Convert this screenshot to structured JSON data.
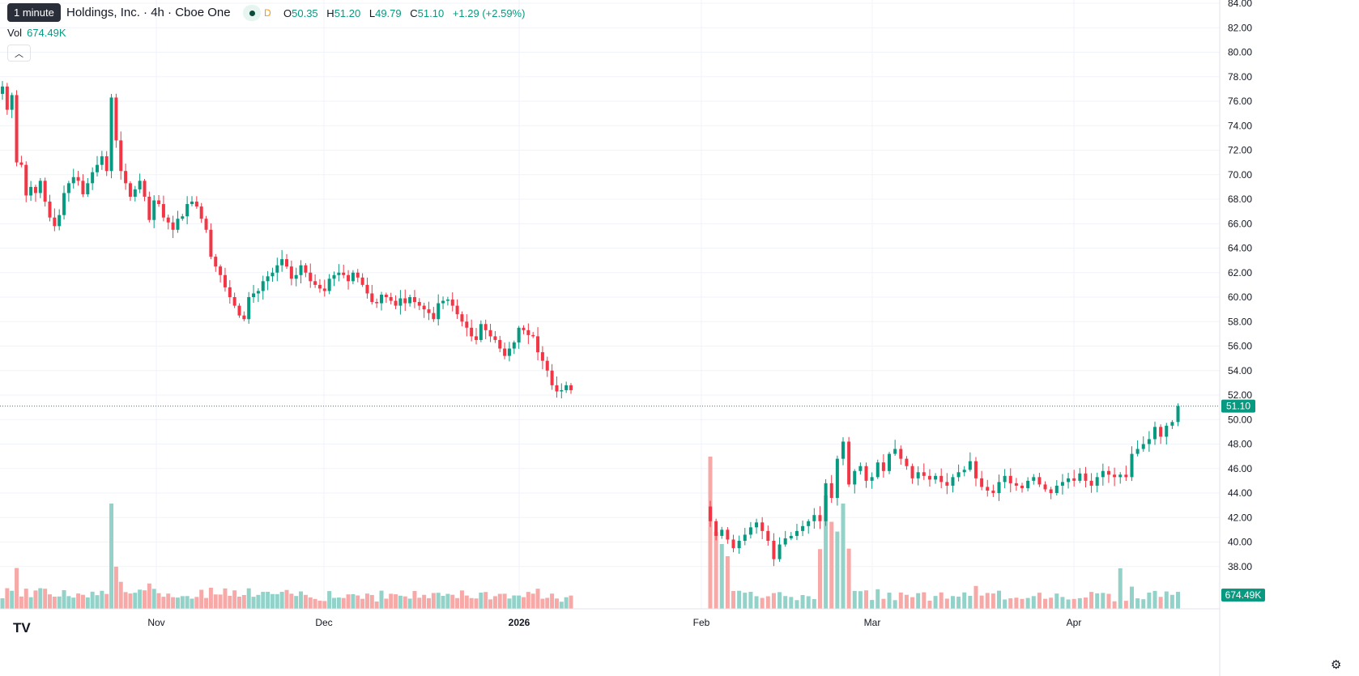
{
  "header": {
    "tooltip": "1 minute",
    "title": "Holdings, Inc. · 4h · Cboe One",
    "d_label": "D",
    "o_label": "O",
    "o_value": "50.35",
    "h_label": "H",
    "h_value": "51.20",
    "l_label": "L",
    "l_value": "49.79",
    "c_label": "C",
    "c_value": "51.10",
    "change": "+1.29 (+2.59%)",
    "vol_label": "Vol",
    "vol_value": "674.49K",
    "collapse_icon": "chevron-up-icon"
  },
  "footer": {
    "logo_text": "TV",
    "settings_icon": "gear-icon"
  },
  "chart_data": {
    "type": "candlestick",
    "ylim": [
      36,
      84
    ],
    "y_ticks": [
      "84.00",
      "82.00",
      "80.00",
      "78.00",
      "76.00",
      "74.00",
      "72.00",
      "70.00",
      "68.00",
      "66.00",
      "64.00",
      "62.00",
      "60.00",
      "58.00",
      "56.00",
      "54.00",
      "52.00",
      "50.00",
      "48.00",
      "46.00",
      "44.00",
      "42.00",
      "40.00",
      "38.00"
    ],
    "x_ticks": [
      "Nov",
      "Dec",
      "2026",
      "Feb",
      "Mar",
      "Apr"
    ],
    "last_price_label": "51.10",
    "last_volume_label": "674.49K",
    "colors": {
      "up": "#089981",
      "down": "#f23645",
      "up_vol": "#92d2c8",
      "down_vol": "#f7a9a7",
      "grid": "#f0f3fa"
    },
    "segments": [
      {
        "closes": [
          77.2,
          75.3,
          76.5,
          71.0,
          70.8,
          68.3,
          69.0,
          68.5,
          69.5,
          67.8,
          66.5,
          65.8,
          66.7,
          68.5,
          69.3,
          69.8,
          69.5,
          68.4,
          69.3,
          70.2,
          70.8,
          71.5,
          70.3,
          76.3,
          72.8,
          70.3,
          69.3,
          68.2,
          68.8,
          69.5,
          68.2,
          66.3,
          67.9,
          67.6,
          66.5,
          66.1,
          65.5,
          66.4,
          66.6,
          67.6,
          67.8,
          67.4,
          66.4,
          65.5,
          63.3,
          62.5,
          61.8,
          60.8,
          60.0,
          59.3,
          58.5,
          58.2,
          60.0,
          60.3,
          60.5,
          61.3,
          61.7,
          62.0,
          62.6,
          63.1,
          62.5,
          61.5,
          61.8,
          62.6,
          62.0,
          61.3,
          61.0,
          60.7,
          60.5,
          61.5,
          61.8,
          62.0,
          61.8,
          61.3,
          62.0,
          61.6,
          61.0,
          60.3,
          59.6,
          59.5,
          60.2,
          60.0,
          59.7,
          59.3,
          59.9,
          59.5,
          60.0,
          59.6,
          59.3,
          59.0,
          58.7,
          58.2,
          59.5,
          59.7,
          59.8,
          59.3,
          58.6,
          58.0,
          57.5,
          56.8,
          56.5,
          57.8,
          57.3,
          56.8,
          56.5,
          55.8,
          55.2,
          55.8,
          56.3,
          57.5,
          57.3,
          56.9,
          56.8,
          55.5,
          54.8,
          54.0,
          52.8,
          52.3,
          52.4,
          52.8,
          52.4
        ],
        "start_x": 3,
        "step": 5.85
      },
      {
        "closes": [
          41.7,
          40.5,
          41.0,
          40.2,
          39.5,
          40.1,
          40.6,
          41.2,
          41.6,
          40.9,
          40.1,
          38.6,
          39.8,
          40.3,
          40.5,
          40.9,
          41.3,
          41.7,
          42.2,
          41.7,
          44.8,
          43.6,
          46.8,
          48.2,
          44.7,
          45.8,
          46.2,
          45.0,
          45.3,
          46.5,
          45.8,
          47.2,
          47.6,
          46.8,
          46.2,
          45.2,
          45.7,
          45.4,
          45.1,
          45.4,
          44.9,
          44.6,
          45.3,
          45.7,
          45.9,
          46.6,
          45.2,
          44.5,
          44.2,
          44.0,
          44.9,
          45.4,
          44.8,
          44.6,
          44.4,
          45.0,
          45.3,
          44.7,
          44.3,
          44.0,
          44.6,
          44.9,
          45.2,
          45.0,
          45.6,
          45.0,
          44.6,
          45.3,
          45.8,
          45.5,
          45.3,
          45.5,
          45.3,
          47.2,
          47.6,
          48.0,
          48.4,
          49.4,
          48.6,
          49.5,
          49.8,
          51.1
        ],
        "start_x": 877,
        "step": 7.13
      }
    ],
    "volume_max_label_scale": "relative"
  }
}
